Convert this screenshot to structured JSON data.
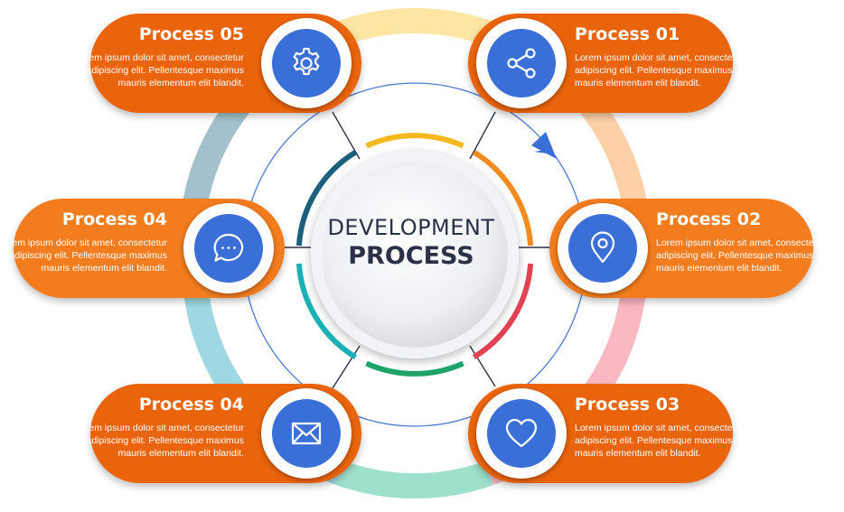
{
  "center": {
    "line1": "DEVELOPMENT",
    "line2": "PROCESS"
  },
  "colors": {
    "orange": "#ea640c",
    "orange_light": "#f37d1e",
    "icon_blue": "#3a6fd7"
  },
  "processes": [
    {
      "id": "05",
      "title": "Process 05",
      "icon": "gear-icon",
      "text": "Lorem ipsum dolor sit amet, consectetur adipiscing elit. Pellentesque maximus mauris elementum elit blandit."
    },
    {
      "id": "01",
      "title": "Process 01",
      "icon": "share-icon",
      "text": "Lorem ipsum dolor sit amet, consectetur adipiscing elit. Pellentesque maximus mauris elementum elit blandit."
    },
    {
      "id": "04a",
      "title": "Process 04",
      "icon": "chat-icon",
      "text": "Lorem ipsum dolor sit amet, consectetur adipiscing elit. Pellentesque maximus mauris elementum elit blandit."
    },
    {
      "id": "02",
      "title": "Process 02",
      "icon": "location-pin-icon",
      "text": "Lorem ipsum dolor sit amet, consectetur adipiscing elit. Pellentesque maximus mauris elementum elit blandit."
    },
    {
      "id": "04b",
      "title": "Process 04",
      "icon": "envelope-icon",
      "text": "Lorem ipsum dolor sit amet, consectetur adipiscing elit. Pellentesque maximus mauris elementum elit blandit."
    },
    {
      "id": "03",
      "title": "Process 03",
      "icon": "heart-icon",
      "text": "Lorem ipsum dolor sit amet, consectetur adipiscing elit. Pellentesque maximus mauris elementum elit blandit."
    }
  ]
}
